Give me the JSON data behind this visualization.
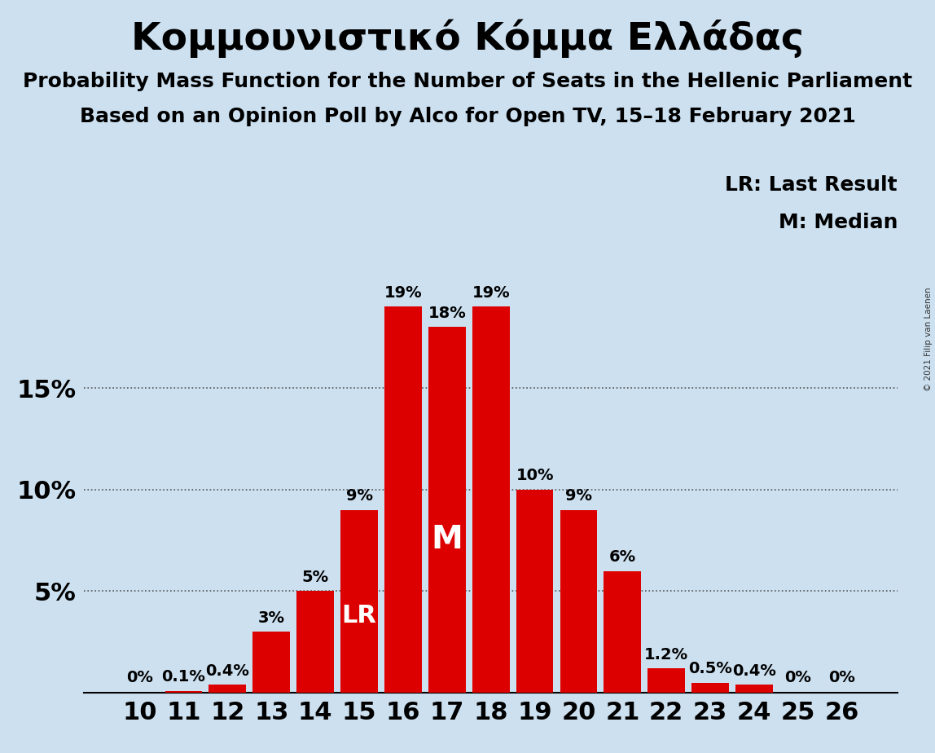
{
  "title": "Κομμουνιστικό Κόμμα Ελλάδας",
  "subtitle1": "Probability Mass Function for the Number of Seats in the Hellenic Parliament",
  "subtitle2": "Based on an Opinion Poll by Alco for Open TV, 15–18 February 2021",
  "copyright": "© 2021 Filip van Laenen",
  "categories": [
    10,
    11,
    12,
    13,
    14,
    15,
    16,
    17,
    18,
    19,
    20,
    21,
    22,
    23,
    24,
    25,
    26
  ],
  "values": [
    0.0,
    0.1,
    0.4,
    3.0,
    5.0,
    9.0,
    19.0,
    18.0,
    19.0,
    10.0,
    9.0,
    6.0,
    1.2,
    0.5,
    0.4,
    0.0,
    0.0
  ],
  "labels": [
    "0%",
    "0.1%",
    "0.4%",
    "3%",
    "5%",
    "9%",
    "19%",
    "18%",
    "19%",
    "10%",
    "9%",
    "6%",
    "1.2%",
    "0.5%",
    "0.4%",
    "0%",
    "0%"
  ],
  "bar_color": "#dd0000",
  "background_color": "#cce0f0",
  "lr_seat": 15,
  "median_seat": 17,
  "lr_label": "LR",
  "median_label": "M",
  "legend_lr": "LR: Last Result",
  "legend_m": "M: Median",
  "yticks": [
    0,
    5,
    10,
    15
  ],
  "ytick_labels": [
    "",
    "5%",
    "10%",
    "15%"
  ],
  "ylim": [
    0,
    21.5
  ],
  "title_fontsize": 34,
  "subtitle_fontsize": 18,
  "axis_fontsize": 22,
  "bar_label_fontsize": 14,
  "legend_fontsize": 18,
  "lr_fontsize": 22,
  "median_fontsize": 28
}
